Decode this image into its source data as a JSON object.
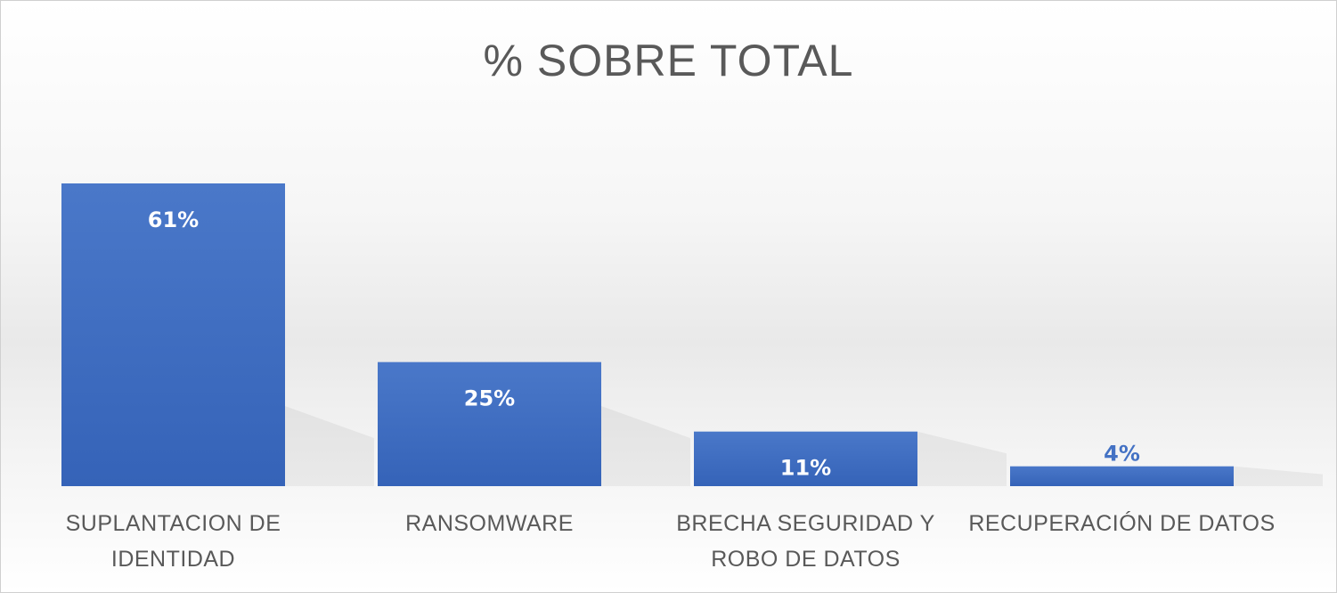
{
  "chart_data": {
    "type": "bar",
    "title": "% SOBRE TOTAL",
    "categories": [
      [
        "SUPLANTACION DE",
        "IDENTIDAD"
      ],
      [
        "RANSOMWARE"
      ],
      [
        "BRECHA SEGURIDAD Y",
        "ROBO DE DATOS"
      ],
      [
        "RECUPERACIÓN DE DATOS"
      ]
    ],
    "values": [
      61,
      25,
      11,
      4
    ],
    "data_labels": [
      "61%",
      "25%",
      "11%",
      "4%"
    ],
    "ylim": [
      0,
      61
    ],
    "grid": false,
    "legend": "none",
    "colors": {
      "bar": "#4472C4",
      "label_inside": "#ffffff",
      "label_outside": "#4472C4"
    }
  }
}
